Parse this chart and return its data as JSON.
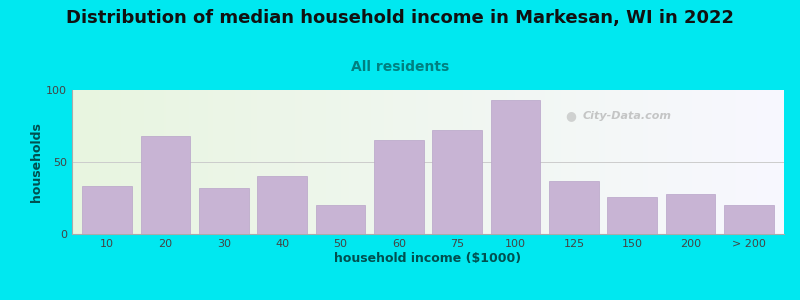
{
  "title": "Distribution of median household income in Markesan, WI in 2022",
  "subtitle": "All residents",
  "xlabel": "household income ($1000)",
  "ylabel": "households",
  "bar_labels": [
    "10",
    "20",
    "30",
    "40",
    "50",
    "60",
    "75",
    "100",
    "125",
    "150",
    "200",
    "> 200"
  ],
  "bar_heights": [
    33,
    68,
    32,
    40,
    20,
    65,
    72,
    93,
    37,
    26,
    28,
    20
  ],
  "bar_color": "#c8b4d4",
  "bar_edge_color": "#b8a4c8",
  "outer_bg": "#00e8f0",
  "ylim": [
    0,
    100
  ],
  "yticks": [
    0,
    50,
    100
  ],
  "title_fontsize": 13,
  "subtitle_fontsize": 10,
  "axis_label_fontsize": 9,
  "tick_fontsize": 8,
  "watermark_text": "City-Data.com"
}
